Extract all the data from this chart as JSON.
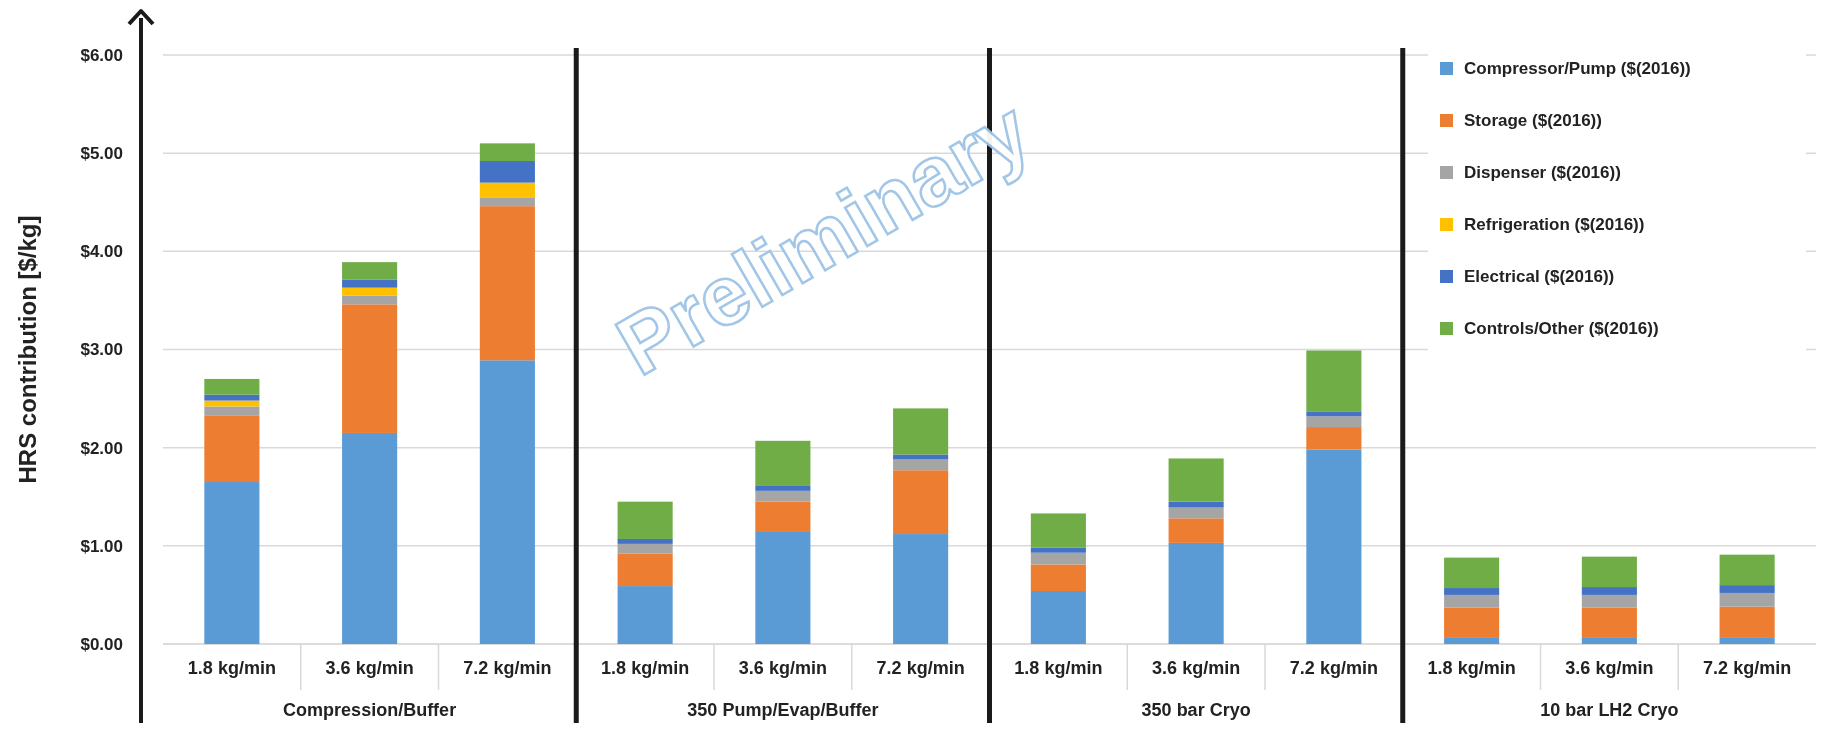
{
  "chart_data": {
    "type": "bar",
    "stacked": true,
    "ylabel": "HRS contribution [$/kg]",
    "categories": [
      "1.8 kg/min",
      "3.6 kg/min",
      "7.2 kg/min",
      "1.8 kg/min",
      "3.6 kg/min",
      "7.2 kg/min",
      "1.8 kg/min",
      "3.6 kg/min",
      "7.2 kg/min",
      "1.8 kg/min",
      "3.6 kg/min",
      "7.2 kg/min"
    ],
    "series": [
      {
        "name": "Compressor/Pump ($(2016))",
        "color": "#5b9bd5",
        "values": [
          1.65,
          2.15,
          2.89,
          0.59,
          1.15,
          1.12,
          0.54,
          1.03,
          1.98,
          0.07,
          0.07,
          0.07
        ]
      },
      {
        "name": "Storage ($(2016))",
        "color": "#ed7d31",
        "values": [
          0.68,
          1.31,
          1.57,
          0.33,
          0.3,
          0.65,
          0.27,
          0.25,
          0.23,
          0.3,
          0.3,
          0.31
        ]
      },
      {
        "name": "Dispenser ($(2016))",
        "color": "#a5a5a5",
        "values": [
          0.09,
          0.09,
          0.09,
          0.1,
          0.11,
          0.11,
          0.12,
          0.11,
          0.11,
          0.13,
          0.13,
          0.14
        ]
      },
      {
        "name": "Refrigeration ($(2016))",
        "color": "#ffc000",
        "values": [
          0.06,
          0.08,
          0.15,
          0,
          0,
          0,
          0,
          0,
          0,
          0,
          0,
          0
        ]
      },
      {
        "name": "Electrical ($(2016))",
        "color": "#4472c4",
        "values": [
          0.06,
          0.08,
          0.22,
          0.05,
          0.05,
          0.05,
          0.05,
          0.06,
          0.05,
          0.07,
          0.08,
          0.08
        ]
      },
      {
        "name": "Controls/Other ($(2016))",
        "color": "#70ad47",
        "values": [
          0.16,
          0.18,
          0.18,
          0.38,
          0.46,
          0.47,
          0.35,
          0.44,
          0.62,
          0.31,
          0.31,
          0.31
        ]
      }
    ],
    "ylim": [
      0,
      6
    ],
    "yticks": [
      {
        "value": 0,
        "label": "$0.00"
      },
      {
        "value": 1,
        "label": "$1.00"
      },
      {
        "value": 2,
        "label": "$2.00"
      },
      {
        "value": 3,
        "label": "$3.00"
      },
      {
        "value": 4,
        "label": "$4.00"
      },
      {
        "value": 5,
        "label": "$5.00"
      },
      {
        "value": 6,
        "label": "$6.00"
      }
    ],
    "grid": "y",
    "legend": "top right",
    "annotations": [
      "Compression/Buffer",
      "350 Pump/Evap/Buffer",
      "350 bar Cryo",
      "10 bar LH2 Cryo",
      "Preliminary"
    ]
  }
}
